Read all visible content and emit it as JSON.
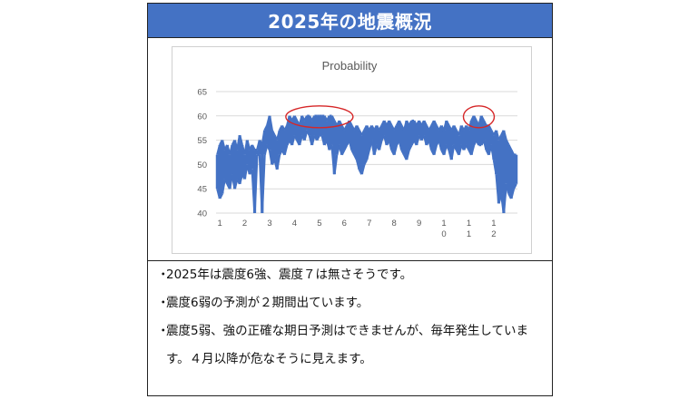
{
  "title": "2025年の地震概況",
  "chart_data": {
    "type": "line",
    "title": "Probability",
    "xlabel": "",
    "ylabel": "",
    "ylim": [
      40,
      65
    ],
    "yticks": [
      40,
      45,
      50,
      55,
      60,
      65
    ],
    "xticks": [
      "1",
      "2",
      "3",
      "4",
      "5",
      "6",
      "7",
      "8",
      "9",
      "10",
      "11",
      "12"
    ],
    "xlim": [
      0.85,
      12.95
    ],
    "grid": true,
    "legend": "none",
    "color": "#4472c4",
    "highlight_color": "#d62728",
    "highlights": [
      {
        "x": 5.0,
        "y": 60
      },
      {
        "x": 11.4,
        "y": 60
      }
    ],
    "series": [
      {
        "x": [
          0.9,
          1.0,
          1.1,
          1.2,
          1.3,
          1.4,
          1.5,
          1.6,
          1.7,
          1.8,
          1.9,
          2.0,
          2.1,
          2.2,
          2.3,
          2.4,
          2.5,
          2.6,
          2.7,
          2.8,
          2.9,
          3.0,
          3.1,
          3.2,
          3.3,
          3.4,
          3.5,
          3.6,
          3.7,
          3.8,
          3.9,
          4.0,
          4.1,
          4.2,
          4.3,
          4.4,
          4.5,
          4.6,
          4.7,
          4.8,
          4.9,
          5.0,
          5.1,
          5.2,
          5.3,
          5.4,
          5.5,
          5.6,
          5.7,
          5.8,
          5.9,
          6.0,
          6.1,
          6.2,
          6.3,
          6.4,
          6.5,
          6.6,
          6.7,
          6.8,
          6.9,
          7.0,
          7.1,
          7.2,
          7.3,
          7.4,
          7.5,
          7.6,
          7.7,
          7.8,
          7.9,
          8.0,
          8.1,
          8.2,
          8.3,
          8.4,
          8.5,
          8.6,
          8.7,
          8.8,
          8.9,
          9.0,
          9.1,
          9.2,
          9.3,
          9.4,
          9.5,
          9.6,
          9.7,
          9.8,
          9.9,
          10.0,
          10.1,
          10.2,
          10.3,
          10.4,
          10.5,
          10.6,
          10.7,
          10.8,
          10.9,
          11.0,
          11.1,
          11.2,
          11.3,
          11.4,
          11.5,
          11.6,
          11.7,
          11.8,
          11.9,
          12.0,
          12.1,
          12.2,
          12.3,
          12.4,
          12.5,
          12.6,
          12.7,
          12.8,
          12.9
        ],
        "low": [
          45,
          43,
          44,
          47,
          46,
          45,
          48,
          45,
          47,
          46,
          48,
          47,
          50,
          48,
          49,
          40,
          52,
          52,
          40,
          52,
          54,
          53,
          50,
          51,
          49,
          52,
          53,
          52,
          54,
          55,
          54,
          56,
          55,
          54,
          56,
          55,
          57,
          56,
          54,
          56,
          55,
          56,
          56,
          54,
          55,
          53,
          54,
          48,
          52,
          54,
          52,
          53,
          54,
          55,
          53,
          52,
          51,
          49,
          48,
          50,
          51,
          53,
          55,
          52,
          54,
          53,
          55,
          56,
          54,
          55,
          53,
          52,
          54,
          55,
          53,
          52,
          51,
          53,
          54,
          55,
          54,
          56,
          55,
          56,
          54,
          55,
          53,
          52,
          54,
          55,
          53,
          52,
          54,
          53,
          51,
          54,
          53,
          52,
          54,
          53,
          54,
          53,
          52,
          54,
          55,
          54,
          54,
          55,
          53,
          52,
          54,
          51,
          48,
          42,
          44,
          40,
          46,
          44,
          43,
          45,
          46
        ],
        "high": [
          52,
          54,
          55,
          53,
          54,
          52,
          54,
          55,
          53,
          56,
          54,
          52,
          55,
          53,
          54,
          53,
          53,
          55,
          54,
          57,
          58,
          60,
          57,
          56,
          55,
          57,
          58,
          57,
          58,
          60,
          59,
          60,
          59,
          58,
          60,
          59,
          60,
          60,
          59,
          60,
          60,
          60,
          60,
          60,
          59,
          60,
          60,
          59,
          58,
          59,
          58,
          57,
          58,
          59,
          58,
          57,
          58,
          57,
          56,
          57,
          58,
          57,
          58,
          57,
          58,
          57,
          58,
          59,
          58,
          59,
          58,
          57,
          58,
          59,
          58,
          57,
          59,
          58,
          59,
          59,
          58,
          59,
          58,
          59,
          58,
          57,
          58,
          59,
          58,
          57,
          58,
          57,
          59,
          58,
          57,
          58,
          57,
          56,
          58,
          57,
          58,
          57,
          59,
          60,
          59,
          58,
          60,
          59,
          58,
          58,
          57,
          56,
          57,
          55,
          56,
          57,
          55,
          54,
          53,
          52,
          52
        ]
      }
    ]
  },
  "notes": [
    "2025年は震度6強、震度７は無さそうです。",
    "震度6弱の予測が２期間出ています。",
    "震度5弱、強の正確な期日予測はできませんが、毎年発生しています。４月以降が危なそうに見えます。"
  ]
}
